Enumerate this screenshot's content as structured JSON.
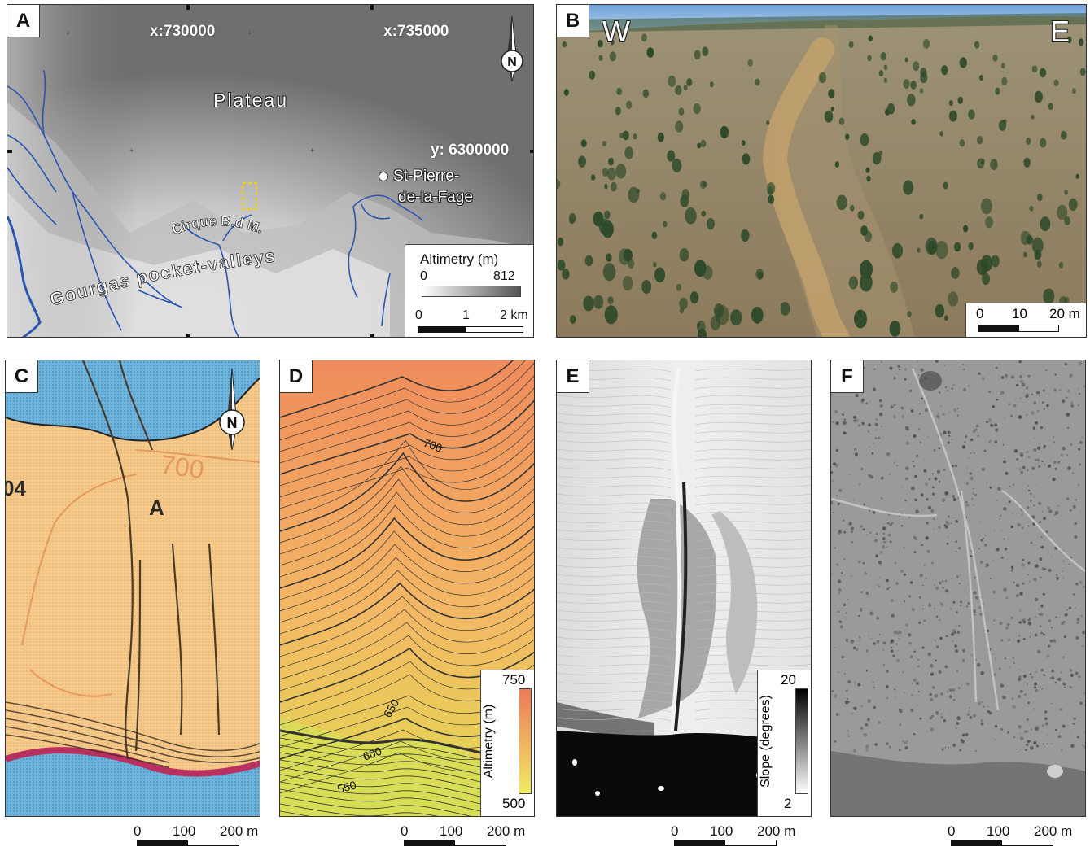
{
  "panels": {
    "a": {
      "letter": "A",
      "coord_x1": "x:730000",
      "coord_x2": "x:735000",
      "coord_y": "y: 6300000",
      "label_plateau": "Plateau",
      "label_town_1": "St-Pierre-",
      "label_town_2": "de-la-Fage",
      "label_cirque": "Cirque B.d M.",
      "label_valleys": "Gourgas pocket-valleys",
      "north": "N",
      "legend_title": "Altimetry (m)",
      "legend_min": "0",
      "legend_max": "812",
      "scale_0": "0",
      "scale_1": "1",
      "scale_2": "2 km"
    },
    "b": {
      "letter": "B",
      "west": "W",
      "east": "E",
      "scale_0": "0",
      "scale_1": "10",
      "scale_2": "20 m"
    },
    "c": {
      "letter": "C",
      "north": "N",
      "map_label_700": "700",
      "map_label_04": "04",
      "scale_0": "0",
      "scale_1": "100",
      "scale_2": "200 m"
    },
    "d": {
      "letter": "D",
      "contour_700": "700",
      "contour_650": "650",
      "contour_600": "600",
      "contour_550": "550",
      "legend_title": "Altimetry (m)",
      "legend_max": "750",
      "legend_min": "500",
      "scale_0": "0",
      "scale_1": "100",
      "scale_2": "200 m"
    },
    "e": {
      "letter": "E",
      "legend_title": "Slope (degrees)",
      "legend_max": "20",
      "legend_min": "2",
      "scale_0": "0",
      "scale_1": "100",
      "scale_2": "200 m"
    },
    "f": {
      "letter": "F",
      "scale_0": "0",
      "scale_1": "100",
      "scale_2": "200 m"
    }
  },
  "colors": {
    "river": "#2a55b0",
    "highlight": "#f0d000",
    "plateau_gray": "#6f6f6f",
    "d_high": "#ec8a5a",
    "d_low": "#f0ec62"
  }
}
